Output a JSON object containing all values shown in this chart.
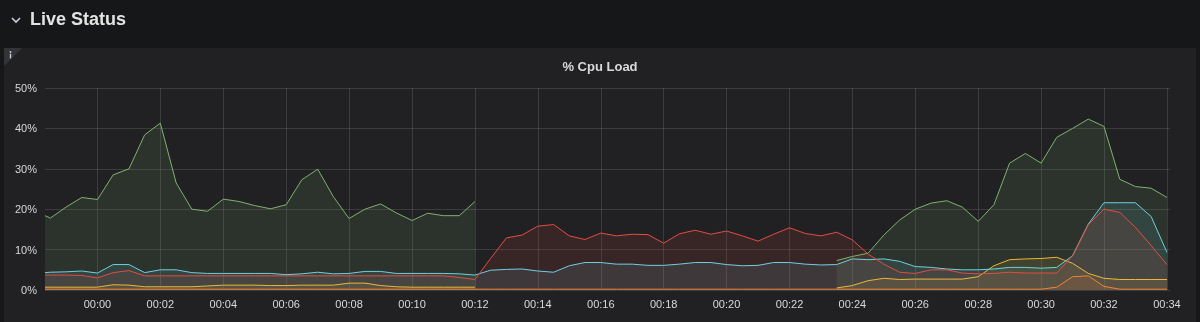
{
  "chart_data": {
    "type": "area",
    "title": "Live Status",
    "subtitle": "% Cpu Load",
    "x": [
      -0.0278,
      -0.025,
      -0.0167,
      -0.0083,
      0,
      0.0083,
      0.0167,
      0.025,
      0.0333,
      0.0417,
      0.05,
      0.0583,
      0.0667,
      0.075,
      0.0833,
      0.0917,
      0.1,
      0.1083,
      0.1167,
      0.125,
      0.1333,
      0.1417,
      0.15,
      0.1583,
      0.1667,
      0.175,
      0.1833,
      0.1917,
      0.2,
      0.2083,
      0.2167,
      0.225,
      0.2333,
      0.2417,
      0.25,
      0.2583,
      0.2667,
      0.275,
      0.2833,
      0.2917,
      0.3,
      0.3083,
      0.3167,
      0.325,
      0.3333,
      0.3417,
      0.35,
      0.3583,
      0.3667,
      0.375,
      0.3833,
      0.3917,
      0.4,
      0.4083,
      0.4167,
      0.425,
      0.4333,
      0.4417,
      0.45,
      0.4583,
      0.4667,
      0.475,
      0.4833,
      0.4917,
      0.5,
      0.5083,
      0.5167,
      0.525,
      0.5333,
      0.5417,
      0.55,
      0.5583,
      0.5667
    ],
    "series": [
      {
        "color": "#7eb26d",
        "values": [
          18.4,
          17.8,
          20.5,
          22.9,
          22.4,
          28.5,
          30,
          38.4,
          41.3,
          26.5,
          20,
          19.5,
          22.5,
          21.9,
          20.9,
          20.1,
          21.1,
          27.3,
          29.9,
          23.1,
          17.7,
          20,
          21.3,
          19.1,
          17.2,
          19,
          18.4,
          18.4,
          21.9,
          null,
          null,
          null,
          null,
          null,
          null,
          null,
          null,
          null,
          null,
          null,
          null,
          null,
          null,
          null,
          null,
          null,
          null,
          null,
          null,
          null,
          null,
          7.3,
          8.3,
          9.1,
          13.6,
          17.3,
          20,
          21.5,
          22.1,
          20.5,
          17,
          21.1,
          31.4,
          33.8,
          31.4,
          37.8,
          40,
          42.3,
          40.5,
          27.4,
          25.6,
          25.2,
          22.9
        ]
      },
      {
        "color": "#eab839",
        "values": [
          0.7,
          0.7,
          0.7,
          0.7,
          0.7,
          1.3,
          1.2,
          0.8,
          0.8,
          0.8,
          0.8,
          1,
          1.2,
          1.2,
          1.2,
          1.1,
          1.1,
          1.2,
          1.2,
          1.2,
          1.7,
          1.7,
          1.1,
          0.8,
          0.7,
          0.7,
          0.7,
          0.7,
          0.7,
          null,
          null,
          null,
          null,
          null,
          null,
          null,
          null,
          null,
          null,
          null,
          null,
          null,
          null,
          null,
          null,
          null,
          null,
          null,
          null,
          null,
          null,
          0.5,
          1.1,
          2.3,
          2.9,
          2.6,
          2.7,
          2.7,
          2.7,
          2.7,
          3.3,
          6,
          7.5,
          7.7,
          7.8,
          8.1,
          6.6,
          4.1,
          2.9,
          2.6,
          2.6,
          2.6,
          2.6
        ]
      },
      {
        "color": "#6ed0e0",
        "values": [
          4.3,
          4.4,
          4.5,
          4.7,
          4.2,
          6.3,
          6.3,
          4.3,
          5,
          5,
          4.3,
          4.1,
          4.1,
          4.1,
          4.1,
          4.1,
          3.8,
          4,
          4.4,
          4,
          4.1,
          4.6,
          4.6,
          4.1,
          4.1,
          4.1,
          4.1,
          4,
          3.7,
          4.9,
          5.1,
          5.2,
          4.7,
          4.4,
          6,
          6.8,
          6.8,
          6.4,
          6.4,
          6.1,
          6.1,
          6.4,
          6.8,
          6.8,
          6.3,
          6,
          6.1,
          6.8,
          6.8,
          6.4,
          6.2,
          6.3,
          7.7,
          7.5,
          7.7,
          7.1,
          5.8,
          5.6,
          5.2,
          5,
          5,
          5.2,
          5.6,
          5.6,
          5.4,
          5.6,
          8.5,
          16.3,
          21.6,
          21.6,
          21.6,
          18.2,
          9.3
        ]
      },
      {
        "color": "#ef843c",
        "values": [
          0.2,
          0.2,
          0.2,
          0.2,
          0.2,
          0.2,
          0.2,
          0.2,
          0.2,
          0.2,
          0.2,
          0.2,
          0.2,
          0.2,
          0.2,
          0.2,
          0.2,
          0.2,
          0.2,
          0.2,
          0.2,
          0.2,
          0.2,
          0.2,
          0.2,
          0.2,
          0.2,
          0.2,
          0.2,
          0.2,
          0.2,
          0.2,
          0.2,
          0.2,
          0.2,
          0.2,
          0.2,
          0.2,
          0.2,
          0.2,
          0.2,
          0.2,
          0.2,
          0.2,
          0.2,
          0.2,
          0.2,
          0.2,
          0.2,
          0.2,
          0.2,
          0.2,
          0.2,
          0.2,
          0.2,
          0.2,
          0.2,
          0.2,
          0.2,
          0.2,
          0.2,
          0.2,
          0.2,
          0.2,
          0.2,
          0.7,
          3.3,
          3.5,
          0.9,
          0.2,
          0.2,
          0.2,
          0.2
        ]
      },
      {
        "color": "#e24d42",
        "values": [
          3.7,
          3.7,
          3.7,
          3.6,
          3.0,
          4.3,
          4.8,
          3.5,
          3.5,
          3.5,
          3.5,
          3.5,
          3.5,
          3.5,
          3.5,
          3.5,
          3.5,
          3.5,
          3.5,
          3.5,
          3.5,
          3.5,
          3.5,
          3.5,
          3.5,
          3.5,
          3.5,
          3.1,
          2.6,
          7.8,
          12.9,
          13.6,
          15.8,
          16.2,
          13.4,
          12.5,
          14.1,
          13.4,
          13.8,
          13.7,
          11.6,
          13.9,
          14.8,
          13.8,
          14.6,
          13.4,
          12.1,
          13.8,
          15.4,
          14,
          13.4,
          14.3,
          12.4,
          8.9,
          6.4,
          4.4,
          4.1,
          5,
          5,
          4.2,
          4,
          4.1,
          4.4,
          4.2,
          4.2,
          4.2,
          8.5,
          16.2,
          20,
          19.2,
          15.5,
          11,
          6.3
        ]
      }
    ],
    "xlim": [
      -0.0278,
      0.5683
    ],
    "xticks": [
      {
        "value": 0,
        "label": "00:00"
      },
      {
        "value": 0.0333,
        "label": "00:02"
      },
      {
        "value": 0.0667,
        "label": "00:04"
      },
      {
        "value": 0.1,
        "label": "00:06"
      },
      {
        "value": 0.1333,
        "label": "00:08"
      },
      {
        "value": 0.1667,
        "label": "00:10"
      },
      {
        "value": 0.2,
        "label": "00:12"
      },
      {
        "value": 0.2333,
        "label": "00:14"
      },
      {
        "value": 0.2667,
        "label": "00:16"
      },
      {
        "value": 0.3,
        "label": "00:18"
      },
      {
        "value": 0.3333,
        "label": "00:20"
      },
      {
        "value": 0.3667,
        "label": "00:22"
      },
      {
        "value": 0.4,
        "label": "00:24"
      },
      {
        "value": 0.4333,
        "label": "00:26"
      },
      {
        "value": 0.4667,
        "label": "00:28"
      },
      {
        "value": 0.5,
        "label": "00:30"
      },
      {
        "value": 0.5333,
        "label": "00:32"
      },
      {
        "value": 0.5667,
        "label": "00:34"
      }
    ],
    "ylim": [
      0,
      50
    ],
    "yticks": [
      {
        "value": 0,
        "label": "0%"
      },
      {
        "value": 10,
        "label": "10%"
      },
      {
        "value": 20,
        "label": "20%"
      },
      {
        "value": 30,
        "label": "30%"
      },
      {
        "value": 40,
        "label": "40%"
      },
      {
        "value": 50,
        "label": "50%"
      }
    ],
    "grid": true
  }
}
